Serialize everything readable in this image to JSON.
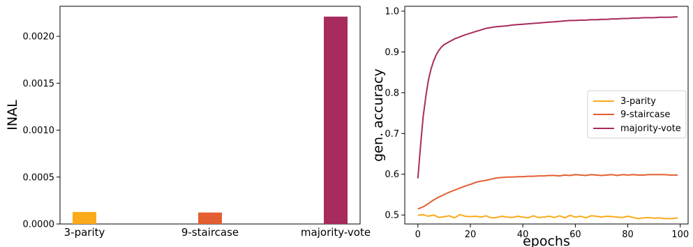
{
  "chart_data": [
    {
      "type": "bar",
      "categories": [
        "3-parity",
        "9-staircase",
        "majority-vote"
      ],
      "values": [
        0.000128,
        0.000122,
        0.00221
      ],
      "colors": [
        "#fcaa1a",
        "#e45e31",
        "#a72b5d"
      ],
      "ylabel": "INAL",
      "ylim": [
        0,
        0.00232
      ],
      "yticks": [
        0.0,
        0.0005,
        0.001,
        0.0015,
        0.002
      ],
      "ytick_labels": [
        "0.0000",
        "0.0005",
        "0.0010",
        "0.0015",
        "0.0020"
      ],
      "grid": false
    },
    {
      "type": "line",
      "xlabel": "epochs",
      "ylabel": "gen. accuracy",
      "xlim": [
        -5,
        103
      ],
      "ylim": [
        0.478,
        1.012
      ],
      "xticks": [
        0,
        20,
        40,
        60,
        80,
        100
      ],
      "xtick_labels": [
        "0",
        "20",
        "40",
        "60",
        "80",
        "100"
      ],
      "yticks": [
        0.5,
        0.6,
        0.7,
        0.8,
        0.9,
        1.0
      ],
      "ytick_labels": [
        "0.5",
        "0.6",
        "0.7",
        "0.8",
        "0.9",
        "1.0"
      ],
      "legend": "center-right",
      "grid": false,
      "series": [
        {
          "name": "3-parity",
          "color": "#fcaa1a",
          "x": [
            0,
            2,
            4,
            6,
            8,
            10,
            12,
            14,
            16,
            18,
            20,
            22,
            24,
            26,
            28,
            30,
            32,
            34,
            36,
            38,
            40,
            42,
            44,
            46,
            48,
            50,
            52,
            54,
            56,
            58,
            60,
            62,
            64,
            66,
            68,
            70,
            72,
            74,
            76,
            78,
            80,
            82,
            84,
            86,
            88,
            90,
            92,
            94,
            96,
            98,
            99
          ],
          "y": [
            0.499,
            0.501,
            0.497,
            0.5,
            0.494,
            0.496,
            0.498,
            0.493,
            0.501,
            0.497,
            0.496,
            0.497,
            0.495,
            0.498,
            0.493,
            0.494,
            0.497,
            0.495,
            0.494,
            0.497,
            0.495,
            0.493,
            0.498,
            0.494,
            0.495,
            0.497,
            0.494,
            0.498,
            0.493,
            0.499,
            0.495,
            0.497,
            0.493,
            0.498,
            0.497,
            0.495,
            0.497,
            0.496,
            0.495,
            0.494,
            0.497,
            0.494,
            0.491,
            0.493,
            0.494,
            0.492,
            0.493,
            0.491,
            0.491,
            0.492,
            0.493
          ]
        },
        {
          "name": "9-staircase",
          "color": "#e45e31",
          "x": [
            0,
            2,
            4,
            6,
            8,
            10,
            12,
            14,
            16,
            18,
            20,
            22,
            24,
            26,
            28,
            30,
            32,
            34,
            36,
            38,
            40,
            42,
            44,
            46,
            48,
            50,
            52,
            54,
            56,
            58,
            60,
            62,
            64,
            66,
            68,
            70,
            72,
            74,
            76,
            78,
            80,
            82,
            84,
            86,
            88,
            90,
            92,
            94,
            96,
            98,
            99
          ],
          "y": [
            0.515,
            0.52,
            0.528,
            0.537,
            0.544,
            0.55,
            0.556,
            0.561,
            0.566,
            0.571,
            0.575,
            0.58,
            0.583,
            0.585,
            0.588,
            0.591,
            0.592,
            0.593,
            0.593,
            0.594,
            0.594,
            0.595,
            0.595,
            0.596,
            0.596,
            0.597,
            0.597,
            0.596,
            0.598,
            0.597,
            0.599,
            0.598,
            0.597,
            0.599,
            0.598,
            0.597,
            0.598,
            0.599,
            0.597,
            0.599,
            0.598,
            0.599,
            0.598,
            0.598,
            0.599,
            0.599,
            0.599,
            0.599,
            0.598,
            0.598,
            0.598
          ]
        },
        {
          "name": "majority-vote",
          "color": "#a72b5d",
          "x": [
            0,
            1,
            2,
            3,
            4,
            5,
            6,
            7,
            8,
            9,
            10,
            12,
            14,
            16,
            18,
            20,
            22,
            24,
            26,
            28,
            30,
            32,
            34,
            36,
            38,
            40,
            42,
            44,
            46,
            48,
            50,
            52,
            54,
            56,
            58,
            60,
            62,
            64,
            66,
            68,
            70,
            72,
            74,
            76,
            78,
            80,
            82,
            84,
            86,
            88,
            90,
            92,
            94,
            96,
            98,
            99
          ],
          "y": [
            0.59,
            0.67,
            0.74,
            0.79,
            0.83,
            0.858,
            0.878,
            0.893,
            0.904,
            0.912,
            0.918,
            0.925,
            0.932,
            0.937,
            0.942,
            0.946,
            0.95,
            0.954,
            0.958,
            0.96,
            0.962,
            0.963,
            0.964,
            0.966,
            0.967,
            0.968,
            0.969,
            0.97,
            0.971,
            0.972,
            0.973,
            0.974,
            0.975,
            0.976,
            0.977,
            0.977,
            0.978,
            0.978,
            0.979,
            0.979,
            0.98,
            0.98,
            0.981,
            0.981,
            0.982,
            0.982,
            0.983,
            0.983,
            0.984,
            0.984,
            0.984,
            0.985,
            0.985,
            0.985,
            0.986,
            0.986
          ]
        }
      ]
    }
  ]
}
